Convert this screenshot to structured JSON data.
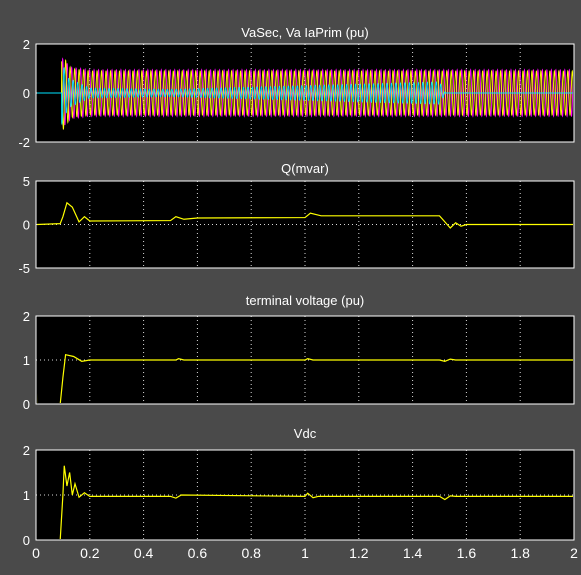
{
  "window": {
    "background": "#4a4a4a",
    "axes_background": "#000000",
    "text_color": "#ffffff",
    "grid_color": "#ffffff",
    "frame_color": "#ffffff"
  },
  "x_axis": {
    "range": [
      0,
      2
    ],
    "ticks": [
      0,
      0.2,
      0.4,
      0.6,
      0.8,
      1,
      1.2,
      1.4,
      1.6,
      1.8,
      2
    ],
    "tick_labels": [
      "0",
      "0.2",
      "0.4",
      "0.6",
      "0.8",
      "1",
      "1.2",
      "1.4",
      "1.6",
      "1.8",
      "2"
    ]
  },
  "chart_data": [
    {
      "type": "line",
      "title": "VaSec, Va IaPrim (pu)",
      "ylim": [
        -2,
        2
      ],
      "yticks": [
        -2,
        0,
        2
      ],
      "ytick_labels": [
        "-2",
        "0",
        "2"
      ],
      "grid": true,
      "series": [
        {
          "color": "#ff00ff",
          "style": "sine",
          "start": 0.095,
          "end": 2.0,
          "before_value": 0,
          "amplitude_points": [
            [
              0.095,
              1.45
            ],
            [
              0.13,
              1.05
            ],
            [
              0.2,
              0.95
            ],
            [
              2.0,
              0.95
            ]
          ],
          "frequency": 60
        },
        {
          "color": "#ffff00",
          "style": "sine",
          "start": 0.095,
          "end": 2.0,
          "before_value": 0,
          "amplitude_points": [
            [
              0.095,
              1.6
            ],
            [
              0.13,
              1.0
            ],
            [
              0.2,
              0.9
            ],
            [
              2.0,
              0.9
            ]
          ],
          "frequency": 60
        },
        {
          "color": "#00e5ff",
          "style": "sine",
          "start": 0.095,
          "end": 1.52,
          "before_value": 0,
          "amplitude_points": [
            [
              0.095,
              1.3
            ],
            [
              0.12,
              0.6
            ],
            [
              0.2,
              0.2
            ],
            [
              0.5,
              0.15
            ],
            [
              1.0,
              0.3
            ],
            [
              1.5,
              0.45
            ],
            [
              1.52,
              0.05
            ]
          ],
          "frequency": 60,
          "after_value": 0
        }
      ]
    },
    {
      "type": "line",
      "title": "Q(mvar)",
      "ylim": [
        -5,
        5
      ],
      "yticks": [
        -5,
        0,
        5
      ],
      "ytick_labels": [
        "-5",
        "0",
        "5"
      ],
      "grid": true,
      "series": [
        {
          "color": "#ffff00",
          "style": "points",
          "points": [
            [
              0,
              0
            ],
            [
              0.09,
              0.1
            ],
            [
              0.1,
              0.9
            ],
            [
              0.115,
              2.5
            ],
            [
              0.135,
              2.0
            ],
            [
              0.16,
              0.3
            ],
            [
              0.18,
              0.9
            ],
            [
              0.2,
              0.4
            ],
            [
              0.5,
              0.45
            ],
            [
              0.52,
              0.9
            ],
            [
              0.55,
              0.6
            ],
            [
              0.6,
              0.75
            ],
            [
              1.0,
              0.8
            ],
            [
              1.02,
              1.3
            ],
            [
              1.06,
              1.0
            ],
            [
              1.5,
              1.0
            ],
            [
              1.52,
              0.3
            ],
            [
              1.54,
              -0.4
            ],
            [
              1.56,
              0.2
            ],
            [
              1.58,
              -0.2
            ],
            [
              1.6,
              0
            ],
            [
              2.0,
              0
            ]
          ]
        }
      ]
    },
    {
      "type": "line",
      "title": "terminal voltage (pu)",
      "ylim": [
        0,
        2
      ],
      "yticks": [
        0,
        1,
        2
      ],
      "ytick_labels": [
        "0",
        "1",
        "2"
      ],
      "grid": true,
      "series": [
        {
          "color": "#ffff00",
          "style": "points",
          "points": [
            [
              0,
              1.0
            ],
            [
              0.002,
              0.0
            ],
            [
              0.09,
              0.0
            ],
            [
              0.1,
              0.6
            ],
            [
              0.11,
              1.12
            ],
            [
              0.14,
              1.08
            ],
            [
              0.17,
              0.97
            ],
            [
              0.2,
              1.0
            ],
            [
              0.52,
              1.0
            ],
            [
              0.53,
              1.03
            ],
            [
              0.55,
              1.0
            ],
            [
              1.0,
              1.0
            ],
            [
              1.01,
              1.03
            ],
            [
              1.03,
              1.0
            ],
            [
              1.5,
              1.0
            ],
            [
              1.52,
              0.97
            ],
            [
              1.54,
              1.02
            ],
            [
              1.56,
              1.0
            ],
            [
              2.0,
              1.0
            ]
          ]
        }
      ]
    },
    {
      "type": "line",
      "title": "Vdc",
      "ylim": [
        0,
        2
      ],
      "yticks": [
        0,
        1,
        2
      ],
      "ytick_labels": [
        "0",
        "1",
        "2"
      ],
      "grid": true,
      "series": [
        {
          "color": "#ffff00",
          "style": "points",
          "points": [
            [
              0,
              0.0
            ],
            [
              0.09,
              0.0
            ],
            [
              0.1,
              1.0
            ],
            [
              0.105,
              1.65
            ],
            [
              0.115,
              1.2
            ],
            [
              0.125,
              1.5
            ],
            [
              0.135,
              1.0
            ],
            [
              0.145,
              1.25
            ],
            [
              0.16,
              0.95
            ],
            [
              0.18,
              1.05
            ],
            [
              0.2,
              0.97
            ],
            [
              0.5,
              0.97
            ],
            [
              0.52,
              0.93
            ],
            [
              0.54,
              1.0
            ],
            [
              1.0,
              0.97
            ],
            [
              1.01,
              1.04
            ],
            [
              1.03,
              0.94
            ],
            [
              1.05,
              0.97
            ],
            [
              1.5,
              0.97
            ],
            [
              1.52,
              0.9
            ],
            [
              1.54,
              0.98
            ],
            [
              1.56,
              0.97
            ],
            [
              2.0,
              0.97
            ]
          ]
        }
      ]
    }
  ]
}
